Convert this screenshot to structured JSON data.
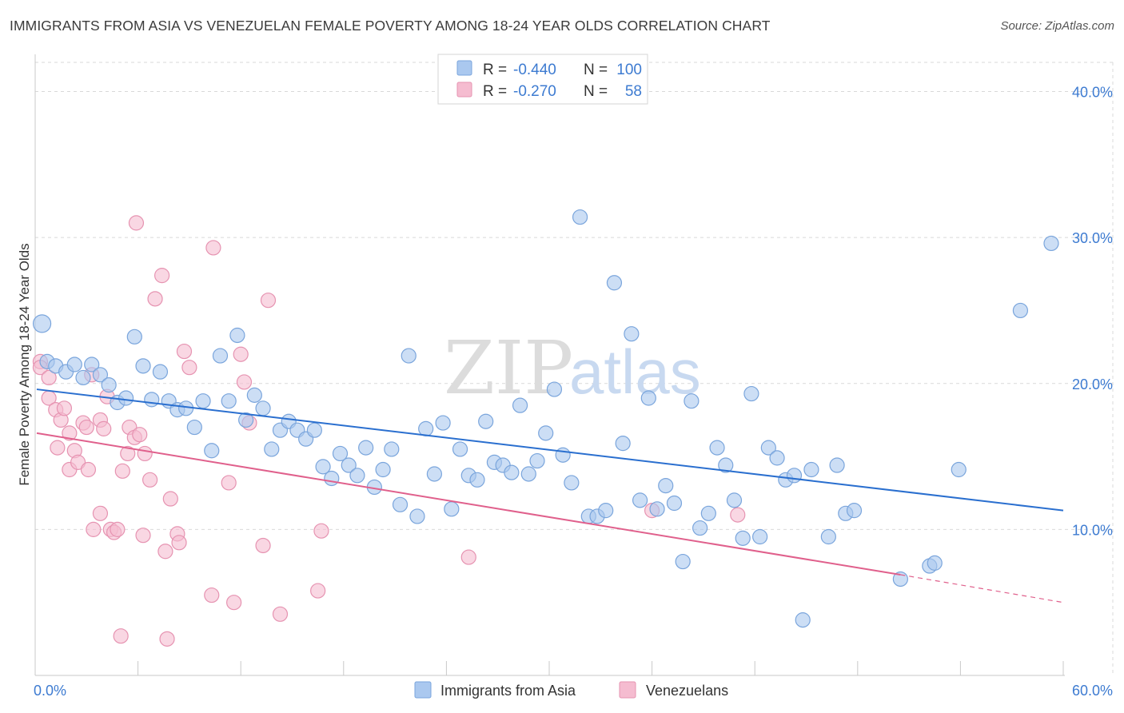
{
  "title": "IMMIGRANTS FROM ASIA VS VENEZUELAN FEMALE POVERTY AMONG 18-24 YEAR OLDS CORRELATION CHART",
  "source": "Source: ZipAtlas.com",
  "watermark": {
    "part1": "ZIP",
    "part2": "atlas"
  },
  "colors": {
    "blue_fill": "#aac8ef",
    "blue_stroke": "#7aa5dc",
    "blue_line": "#2a6fcf",
    "pink_fill": "#f5bcd0",
    "pink_stroke": "#e693b1",
    "pink_line": "#e0608c",
    "tick_text": "#3d7bd1",
    "grid": "#d9d9d9"
  },
  "legend": {
    "rows": [
      {
        "r_label": "R = ",
        "r_value": "-0.440",
        "n_label": "N = ",
        "n_value": "100"
      },
      {
        "r_label": "R = ",
        "r_value": "-0.270",
        "n_label": "N = ",
        "n_value": "58"
      }
    ]
  },
  "chart_data": {
    "type": "scatter",
    "title": "IMMIGRANTS FROM ASIA VS VENEZUELAN FEMALE POVERTY AMONG 18-24 YEAR OLDS CORRELATION CHART",
    "xlabel": "",
    "ylabel": "Female Poverty Among 18-24 Year Olds",
    "xlim": [
      0,
      60
    ],
    "ylim": [
      0,
      42
    ],
    "x_ticks": [
      0,
      6,
      12,
      18,
      24,
      30,
      36,
      42,
      48,
      54,
      60
    ],
    "x_tick_labels": [
      "0.0%",
      "60.0%"
    ],
    "y_ticks": [
      10,
      20,
      30,
      40
    ],
    "y_tick_labels": [
      "10.0%",
      "20.0%",
      "30.0%",
      "40.0%"
    ],
    "grid": true,
    "legend_position": "top-center",
    "series": [
      {
        "name": "Immigrants from Asia",
        "color": "#aac8ef",
        "trend": {
          "x": [
            0,
            60
          ],
          "y": [
            19.6,
            11.3
          ]
        },
        "points": [
          {
            "x": 0.4,
            "y": 24.1
          },
          {
            "x": 0.7,
            "y": 21.5
          },
          {
            "x": 1.2,
            "y": 21.2
          },
          {
            "x": 1.8,
            "y": 20.8
          },
          {
            "x": 2.3,
            "y": 21.3
          },
          {
            "x": 2.8,
            "y": 20.4
          },
          {
            "x": 3.3,
            "y": 21.3
          },
          {
            "x": 3.8,
            "y": 20.6
          },
          {
            "x": 4.3,
            "y": 19.9
          },
          {
            "x": 4.8,
            "y": 18.7
          },
          {
            "x": 5.3,
            "y": 19.0
          },
          {
            "x": 5.8,
            "y": 23.2
          },
          {
            "x": 6.3,
            "y": 21.2
          },
          {
            "x": 6.8,
            "y": 18.9
          },
          {
            "x": 7.3,
            "y": 20.8
          },
          {
            "x": 7.8,
            "y": 18.8
          },
          {
            "x": 8.3,
            "y": 18.2
          },
          {
            "x": 8.8,
            "y": 18.3
          },
          {
            "x": 9.3,
            "y": 17.0
          },
          {
            "x": 9.8,
            "y": 18.8
          },
          {
            "x": 10.3,
            "y": 15.4
          },
          {
            "x": 10.8,
            "y": 21.9
          },
          {
            "x": 11.3,
            "y": 18.8
          },
          {
            "x": 11.8,
            "y": 23.3
          },
          {
            "x": 12.3,
            "y": 17.5
          },
          {
            "x": 12.8,
            "y": 19.2
          },
          {
            "x": 13.3,
            "y": 18.3
          },
          {
            "x": 13.8,
            "y": 15.5
          },
          {
            "x": 14.3,
            "y": 16.8
          },
          {
            "x": 14.8,
            "y": 17.4
          },
          {
            "x": 15.3,
            "y": 16.8
          },
          {
            "x": 15.8,
            "y": 16.2
          },
          {
            "x": 16.3,
            "y": 16.8
          },
          {
            "x": 16.8,
            "y": 14.3
          },
          {
            "x": 17.3,
            "y": 13.5
          },
          {
            "x": 17.8,
            "y": 15.2
          },
          {
            "x": 18.3,
            "y": 14.4
          },
          {
            "x": 18.8,
            "y": 13.7
          },
          {
            "x": 19.3,
            "y": 15.6
          },
          {
            "x": 19.8,
            "y": 12.9
          },
          {
            "x": 20.3,
            "y": 14.1
          },
          {
            "x": 20.8,
            "y": 15.5
          },
          {
            "x": 21.3,
            "y": 11.7
          },
          {
            "x": 21.8,
            "y": 21.9
          },
          {
            "x": 22.3,
            "y": 10.9
          },
          {
            "x": 22.8,
            "y": 16.9
          },
          {
            "x": 23.3,
            "y": 13.8
          },
          {
            "x": 23.8,
            "y": 17.3
          },
          {
            "x": 24.3,
            "y": 11.4
          },
          {
            "x": 24.8,
            "y": 15.5
          },
          {
            "x": 25.3,
            "y": 13.7
          },
          {
            "x": 25.8,
            "y": 13.4
          },
          {
            "x": 26.3,
            "y": 17.4
          },
          {
            "x": 26.8,
            "y": 14.6
          },
          {
            "x": 27.3,
            "y": 14.4
          },
          {
            "x": 27.8,
            "y": 13.9
          },
          {
            "x": 28.3,
            "y": 18.5
          },
          {
            "x": 28.8,
            "y": 13.8
          },
          {
            "x": 29.3,
            "y": 14.7
          },
          {
            "x": 29.8,
            "y": 16.6
          },
          {
            "x": 30.3,
            "y": 19.6
          },
          {
            "x": 30.8,
            "y": 15.1
          },
          {
            "x": 31.3,
            "y": 13.2
          },
          {
            "x": 31.8,
            "y": 31.4
          },
          {
            "x": 32.3,
            "y": 10.9
          },
          {
            "x": 32.8,
            "y": 10.9
          },
          {
            "x": 33.3,
            "y": 11.3
          },
          {
            "x": 33.8,
            "y": 26.9
          },
          {
            "x": 34.3,
            "y": 15.9
          },
          {
            "x": 34.8,
            "y": 23.4
          },
          {
            "x": 35.3,
            "y": 12.0
          },
          {
            "x": 35.8,
            "y": 19.0
          },
          {
            "x": 36.3,
            "y": 11.4
          },
          {
            "x": 36.8,
            "y": 13.0
          },
          {
            "x": 37.3,
            "y": 11.8
          },
          {
            "x": 37.8,
            "y": 7.8
          },
          {
            "x": 38.3,
            "y": 18.8
          },
          {
            "x": 38.8,
            "y": 10.1
          },
          {
            "x": 39.3,
            "y": 11.1
          },
          {
            "x": 39.8,
            "y": 15.6
          },
          {
            "x": 40.3,
            "y": 14.4
          },
          {
            "x": 40.8,
            "y": 12.0
          },
          {
            "x": 41.3,
            "y": 9.4
          },
          {
            "x": 41.8,
            "y": 19.3
          },
          {
            "x": 42.3,
            "y": 9.5
          },
          {
            "x": 42.8,
            "y": 15.6
          },
          {
            "x": 43.3,
            "y": 14.9
          },
          {
            "x": 43.8,
            "y": 13.4
          },
          {
            "x": 44.3,
            "y": 13.7
          },
          {
            "x": 44.8,
            "y": 3.8
          },
          {
            "x": 45.3,
            "y": 14.1
          },
          {
            "x": 46.3,
            "y": 9.5
          },
          {
            "x": 46.8,
            "y": 14.4
          },
          {
            "x": 47.3,
            "y": 11.1
          },
          {
            "x": 47.8,
            "y": 11.3
          },
          {
            "x": 50.5,
            "y": 6.6
          },
          {
            "x": 52.2,
            "y": 7.5
          },
          {
            "x": 52.5,
            "y": 7.7
          },
          {
            "x": 53.9,
            "y": 14.1
          },
          {
            "x": 57.5,
            "y": 25.0
          },
          {
            "x": 59.3,
            "y": 29.6
          }
        ]
      },
      {
        "name": "Venezuelans",
        "color": "#f5bcd0",
        "trend": {
          "x": [
            0,
            50.5
          ],
          "y": [
            16.6,
            6.9
          ],
          "dashed_to": {
            "x": 60,
            "y": 5.0
          }
        },
        "points": [
          {
            "x": 0.3,
            "y": 21.5
          },
          {
            "x": 0.3,
            "y": 21.1
          },
          {
            "x": 0.8,
            "y": 19.0
          },
          {
            "x": 0.8,
            "y": 20.4
          },
          {
            "x": 1.2,
            "y": 18.2
          },
          {
            "x": 1.3,
            "y": 15.6
          },
          {
            "x": 1.5,
            "y": 17.5
          },
          {
            "x": 1.7,
            "y": 18.3
          },
          {
            "x": 2.0,
            "y": 14.1
          },
          {
            "x": 2.0,
            "y": 16.6
          },
          {
            "x": 2.3,
            "y": 15.4
          },
          {
            "x": 2.5,
            "y": 14.6
          },
          {
            "x": 2.8,
            "y": 17.3
          },
          {
            "x": 3.0,
            "y": 17.0
          },
          {
            "x": 3.1,
            "y": 14.1
          },
          {
            "x": 3.3,
            "y": 20.6
          },
          {
            "x": 3.4,
            "y": 10.0
          },
          {
            "x": 3.8,
            "y": 17.5
          },
          {
            "x": 3.8,
            "y": 11.1
          },
          {
            "x": 4.0,
            "y": 16.9
          },
          {
            "x": 4.2,
            "y": 19.1
          },
          {
            "x": 4.4,
            "y": 10.0
          },
          {
            "x": 4.6,
            "y": 9.8
          },
          {
            "x": 4.8,
            "y": 10.0
          },
          {
            "x": 5.0,
            "y": 2.7
          },
          {
            "x": 5.1,
            "y": 14.0
          },
          {
            "x": 5.4,
            "y": 15.2
          },
          {
            "x": 5.5,
            "y": 17.0
          },
          {
            "x": 5.8,
            "y": 16.3
          },
          {
            "x": 5.9,
            "y": 31.0
          },
          {
            "x": 6.1,
            "y": 16.5
          },
          {
            "x": 6.3,
            "y": 9.6
          },
          {
            "x": 6.4,
            "y": 15.2
          },
          {
            "x": 6.7,
            "y": 13.4
          },
          {
            "x": 7.0,
            "y": 25.8
          },
          {
            "x": 7.4,
            "y": 27.4
          },
          {
            "x": 7.6,
            "y": 8.5
          },
          {
            "x": 7.7,
            "y": 2.5
          },
          {
            "x": 7.9,
            "y": 12.1
          },
          {
            "x": 8.3,
            "y": 9.7
          },
          {
            "x": 8.4,
            "y": 9.1
          },
          {
            "x": 8.7,
            "y": 22.2
          },
          {
            "x": 9.0,
            "y": 21.1
          },
          {
            "x": 10.3,
            "y": 5.5
          },
          {
            "x": 10.4,
            "y": 29.3
          },
          {
            "x": 11.3,
            "y": 13.2
          },
          {
            "x": 11.6,
            "y": 5.0
          },
          {
            "x": 12.0,
            "y": 22.0
          },
          {
            "x": 12.2,
            "y": 20.1
          },
          {
            "x": 12.5,
            "y": 17.3
          },
          {
            "x": 13.3,
            "y": 8.9
          },
          {
            "x": 13.6,
            "y": 25.7
          },
          {
            "x": 14.3,
            "y": 4.2
          },
          {
            "x": 16.5,
            "y": 5.8
          },
          {
            "x": 16.7,
            "y": 9.9
          },
          {
            "x": 25.3,
            "y": 8.1
          },
          {
            "x": 36.0,
            "y": 11.3
          },
          {
            "x": 41.0,
            "y": 11.0
          }
        ]
      }
    ]
  },
  "bottom_legend": {
    "series1": "Immigrants from Asia",
    "series2": "Venezuelans"
  }
}
